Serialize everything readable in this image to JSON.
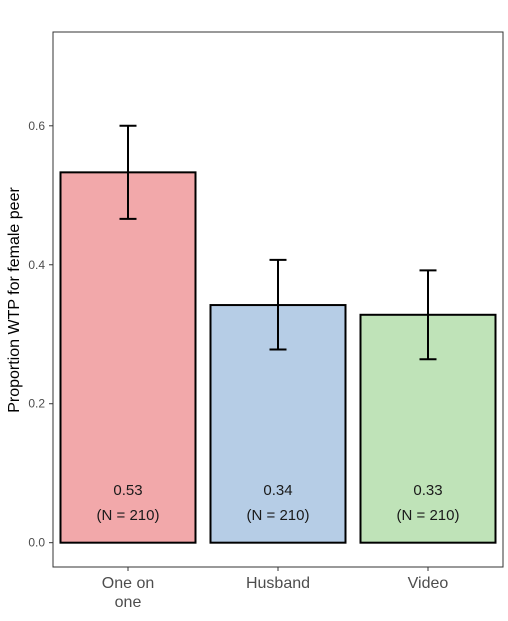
{
  "chart_data": {
    "type": "bar",
    "title": "",
    "xlabel": "",
    "ylabel": "Proportion WTP for female peer",
    "categories": [
      {
        "lines": [
          "One on",
          "one"
        ]
      },
      {
        "lines": [
          "Husband"
        ]
      },
      {
        "lines": [
          "Video"
        ]
      }
    ],
    "values": [
      0.533,
      0.342,
      0.328
    ],
    "error_bars": [
      {
        "low": 0.466,
        "high": 0.6
      },
      {
        "low": 0.278,
        "high": 0.407
      },
      {
        "low": 0.264,
        "high": 0.392
      }
    ],
    "bar_labels": [
      {
        "value_text": "0.53",
        "n_text": "(N = 210)"
      },
      {
        "value_text": "0.34",
        "n_text": "(N = 210)"
      },
      {
        "value_text": "0.33",
        "n_text": "(N = 210)"
      }
    ],
    "y_ticks": [
      0.0,
      0.2,
      0.4,
      0.6
    ],
    "y_tick_labels": [
      "0.0",
      "0.2",
      "0.4",
      "0.6"
    ],
    "ylim": [
      -0.035,
      0.735
    ],
    "grid": false,
    "legend": "none",
    "colors": {
      "bars": [
        "#f2a8aa",
        "#b6cde6",
        "#bfe3b8"
      ],
      "bar_stroke": "#000000",
      "panel_border": "#333333",
      "error_bar": "#000000"
    }
  }
}
